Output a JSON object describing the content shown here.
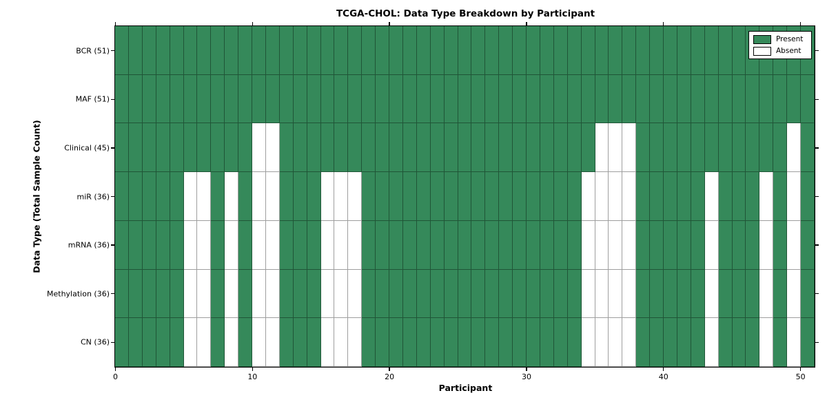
{
  "chart_data": {
    "type": "heatmap",
    "title": "TCGA-CHOL: Data Type Breakdown by Participant",
    "xlabel": "Participant",
    "ylabel": "Data Type (Total Sample Count)",
    "x_ticks": [
      0,
      10,
      20,
      30,
      40,
      50
    ],
    "x_range": [
      0,
      51
    ],
    "n_participants": 51,
    "grid": "cell-borders-on",
    "legend": {
      "position": "upper-right",
      "entries": [
        {
          "name": "present",
          "label": "Present",
          "color": "#35895A"
        },
        {
          "name": "absent",
          "label": "Absent",
          "color": "#FFFFFF"
        }
      ]
    },
    "colors": {
      "present": "#35895A",
      "absent": "#FFFFFF",
      "spine": "#000000"
    },
    "rows": [
      {
        "label": "BCR (51)",
        "data_type": "BCR",
        "total": 51,
        "absent_participants": []
      },
      {
        "label": "MAF (51)",
        "data_type": "MAF",
        "total": 51,
        "absent_participants": []
      },
      {
        "label": "Clinical (45)",
        "data_type": "Clinical",
        "total": 45,
        "absent_participants": [
          10,
          11,
          35,
          36,
          37,
          49
        ]
      },
      {
        "label": "miR (36)",
        "data_type": "miR",
        "total": 36,
        "absent_participants": [
          5,
          6,
          8,
          10,
          11,
          15,
          16,
          17,
          34,
          35,
          36,
          37,
          43,
          47,
          49
        ]
      },
      {
        "label": "mRNA (36)",
        "data_type": "mRNA",
        "total": 36,
        "absent_participants": [
          5,
          6,
          8,
          10,
          11,
          15,
          16,
          17,
          34,
          35,
          36,
          37,
          43,
          47,
          49
        ]
      },
      {
        "label": "Methylation (36)",
        "data_type": "Methylation",
        "total": 36,
        "absent_participants": [
          5,
          6,
          8,
          10,
          11,
          15,
          16,
          17,
          34,
          35,
          36,
          37,
          43,
          47,
          49
        ]
      },
      {
        "label": "CN (36)",
        "data_type": "CN",
        "total": 36,
        "absent_participants": [
          5,
          6,
          8,
          10,
          11,
          15,
          16,
          17,
          34,
          35,
          36,
          37,
          43,
          47,
          49
        ]
      }
    ]
  }
}
